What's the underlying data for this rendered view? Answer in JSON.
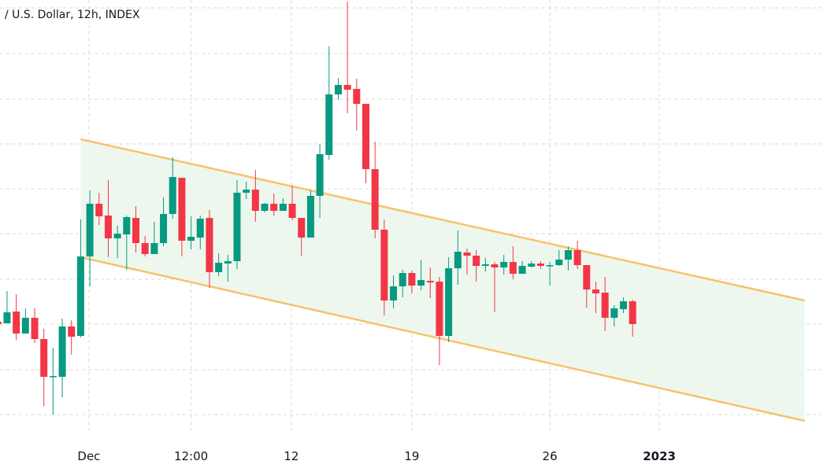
{
  "header": {
    "title": "/ U.S. Dollar, 12h, INDEX"
  },
  "colors": {
    "up": "#089981",
    "down": "#f23645",
    "channel_line": "#f7c26b",
    "channel_fill": "#edf7ee",
    "grid": "#d9d9d9"
  },
  "chart_data": {
    "type": "candlestick",
    "title": "/ U.S. Dollar, 12h, INDEX",
    "xlabel": "",
    "ylabel": "",
    "value_note": "unitless relative price level (no price axis visible)",
    "ylim": [
      0,
      540
    ],
    "grid": true,
    "x_tick_labels": [
      {
        "label": "Dec",
        "candle_index": 9.9,
        "bold": false
      },
      {
        "label": "12:00",
        "candle_index": 21,
        "bold": false
      },
      {
        "label": "12",
        "candle_index": 31.9,
        "bold": false
      },
      {
        "label": "19",
        "candle_index": 45,
        "bold": false
      },
      {
        "label": "26",
        "candle_index": 60,
        "bold": false
      },
      {
        "label": "2023",
        "candle_index": 71.9,
        "bold": true
      }
    ],
    "candles": [
      {
        "o": 131,
        "h": 131,
        "l": 128,
        "c": 128
      },
      {
        "o": 129,
        "h": 170,
        "l": 129,
        "c": 143
      },
      {
        "o": 144,
        "h": 166,
        "l": 108,
        "c": 116
      },
      {
        "o": 116,
        "h": 148,
        "l": 116,
        "c": 136
      },
      {
        "o": 136,
        "h": 148,
        "l": 104,
        "c": 109
      },
      {
        "o": 109,
        "h": 122,
        "l": 24,
        "c": 61
      },
      {
        "o": 61,
        "h": 98,
        "l": 13,
        "c": 62
      },
      {
        "o": 61,
        "h": 135,
        "l": 35,
        "c": 125
      },
      {
        "o": 125,
        "h": 133,
        "l": 89,
        "c": 112
      },
      {
        "o": 113,
        "h": 261,
        "l": 111,
        "c": 214
      },
      {
        "o": 214,
        "h": 298,
        "l": 176,
        "c": 281
      },
      {
        "o": 281,
        "h": 295,
        "l": 254,
        "c": 265
      },
      {
        "o": 266,
        "h": 311,
        "l": 213,
        "c": 237
      },
      {
        "o": 237,
        "h": 253,
        "l": 212,
        "c": 243
      },
      {
        "o": 242,
        "h": 266,
        "l": 197,
        "c": 264
      },
      {
        "o": 263,
        "h": 278,
        "l": 219,
        "c": 231
      },
      {
        "o": 231,
        "h": 240,
        "l": 214,
        "c": 217
      },
      {
        "o": 217,
        "h": 258,
        "l": 217,
        "c": 231
      },
      {
        "o": 231,
        "h": 289,
        "l": 227,
        "c": 268
      },
      {
        "o": 268,
        "h": 340,
        "l": 262,
        "c": 315
      },
      {
        "o": 314,
        "h": 314,
        "l": 214,
        "c": 234
      },
      {
        "o": 234,
        "h": 265,
        "l": 223,
        "c": 239
      },
      {
        "o": 238,
        "h": 266,
        "l": 223,
        "c": 262
      },
      {
        "o": 263,
        "h": 273,
        "l": 174,
        "c": 194
      },
      {
        "o": 194,
        "h": 218,
        "l": 189,
        "c": 206
      },
      {
        "o": 205,
        "h": 216,
        "l": 182,
        "c": 208
      },
      {
        "o": 208,
        "h": 311,
        "l": 198,
        "c": 295
      },
      {
        "o": 295,
        "h": 309,
        "l": 287,
        "c": 299
      },
      {
        "o": 299,
        "h": 324,
        "l": 258,
        "c": 272
      },
      {
        "o": 272,
        "h": 282,
        "l": 270,
        "c": 281
      },
      {
        "o": 281,
        "h": 294,
        "l": 266,
        "c": 272
      },
      {
        "o": 272,
        "h": 288,
        "l": 272,
        "c": 281
      },
      {
        "o": 281,
        "h": 304,
        "l": 260,
        "c": 263
      },
      {
        "o": 263,
        "h": 263,
        "l": 215,
        "c": 238
      },
      {
        "o": 238,
        "h": 298,
        "l": 238,
        "c": 291
      },
      {
        "o": 291,
        "h": 357,
        "l": 263,
        "c": 344
      },
      {
        "o": 343,
        "h": 481,
        "l": 337,
        "c": 420
      },
      {
        "o": 420,
        "h": 441,
        "l": 413,
        "c": 432
      },
      {
        "o": 432,
        "h": 538,
        "l": 396,
        "c": 426
      },
      {
        "o": 427,
        "h": 440,
        "l": 374,
        "c": 408
      },
      {
        "o": 408,
        "h": 408,
        "l": 307,
        "c": 325
      },
      {
        "o": 325,
        "h": 360,
        "l": 237,
        "c": 248
      },
      {
        "o": 248,
        "h": 261,
        "l": 139,
        "c": 158
      },
      {
        "o": 158,
        "h": 190,
        "l": 148,
        "c": 176
      },
      {
        "o": 176,
        "h": 197,
        "l": 162,
        "c": 193
      },
      {
        "o": 193,
        "h": 196,
        "l": 167,
        "c": 177
      },
      {
        "o": 177,
        "h": 210,
        "l": 171,
        "c": 184
      },
      {
        "o": 183,
        "h": 200,
        "l": 161,
        "c": 181
      },
      {
        "o": 182,
        "h": 188,
        "l": 76,
        "c": 113
      },
      {
        "o": 113,
        "h": 213,
        "l": 105,
        "c": 199
      },
      {
        "o": 199,
        "h": 247,
        "l": 178,
        "c": 220
      },
      {
        "o": 219,
        "h": 224,
        "l": 191,
        "c": 215
      },
      {
        "o": 215,
        "h": 222,
        "l": 182,
        "c": 202
      },
      {
        "o": 202,
        "h": 212,
        "l": 195,
        "c": 204
      },
      {
        "o": 204,
        "h": 207,
        "l": 143,
        "c": 200
      },
      {
        "o": 200,
        "h": 216,
        "l": 191,
        "c": 207
      },
      {
        "o": 207,
        "h": 227,
        "l": 185,
        "c": 192
      },
      {
        "o": 192,
        "h": 208,
        "l": 192,
        "c": 202
      },
      {
        "o": 201,
        "h": 208,
        "l": 200,
        "c": 205
      },
      {
        "o": 205,
        "h": 208,
        "l": 198,
        "c": 202
      },
      {
        "o": 202,
        "h": 207,
        "l": 177,
        "c": 203
      },
      {
        "o": 203,
        "h": 222,
        "l": 202,
        "c": 210
      },
      {
        "o": 210,
        "h": 227,
        "l": 196,
        "c": 222
      },
      {
        "o": 222,
        "h": 234,
        "l": 198,
        "c": 203
      },
      {
        "o": 203,
        "h": 203,
        "l": 149,
        "c": 172
      },
      {
        "o": 172,
        "h": 182,
        "l": 142,
        "c": 167
      },
      {
        "o": 168,
        "h": 188,
        "l": 119,
        "c": 136
      },
      {
        "o": 136,
        "h": 152,
        "l": 125,
        "c": 148
      },
      {
        "o": 147,
        "h": 162,
        "l": 142,
        "c": 157
      },
      {
        "o": 157,
        "h": 159,
        "l": 112,
        "c": 128
      }
    ],
    "channel": {
      "start_candle_index": 9,
      "end_candle_index": 87.7,
      "upper": [
        363,
        158
      ],
      "lower": [
        213,
        5
      ]
    }
  }
}
